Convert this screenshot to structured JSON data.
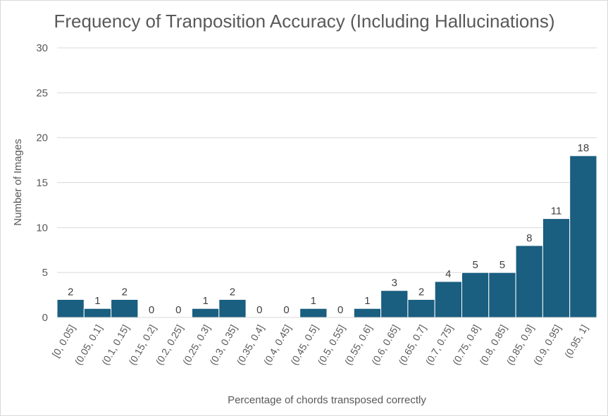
{
  "chart_data": {
    "type": "bar",
    "title": "Frequency of Tranposition Accuracy (Including Hallucinations)",
    "xlabel": "Percentage of chords transposed correctly",
    "ylabel": "Number of Images",
    "ylim": [
      0,
      30
    ],
    "yticks": [
      "0",
      "5",
      "10",
      "15",
      "20",
      "25",
      "30"
    ],
    "grid": true,
    "bar_color": "#1a5e80",
    "categories": [
      "[0, 0.05]",
      "(0.05, 0.1]",
      "(0.1, 0.15]",
      "(0.15, 0.2]",
      "(0.2, 0.25]",
      "(0.25, 0.3]",
      "(0.3, 0.35]",
      "(0.35, 0.4]",
      "(0.4, 0.45]",
      "(0.45, 0.5]",
      "(0.5, 0.55]",
      "(0.55, 0.6]",
      "(0.6, 0.65]",
      "(0.65, 0.7]",
      "(0.7, 0.75]",
      "(0.75, 0.8]",
      "(0.8, 0.85]",
      "(0.85, 0.9]",
      "(0.9, 0.95]",
      "(0.95, 1]"
    ],
    "values": [
      2,
      1,
      2,
      0,
      0,
      1,
      2,
      0,
      0,
      1,
      0,
      1,
      3,
      2,
      4,
      5,
      5,
      8,
      11,
      18
    ],
    "data_labels": [
      "2",
      "1",
      "2",
      "0",
      "0",
      "1",
      "2",
      "0",
      "0",
      "1",
      "0",
      "1",
      "3",
      "2",
      "4",
      "5",
      "5",
      "8",
      "11",
      "18"
    ]
  }
}
